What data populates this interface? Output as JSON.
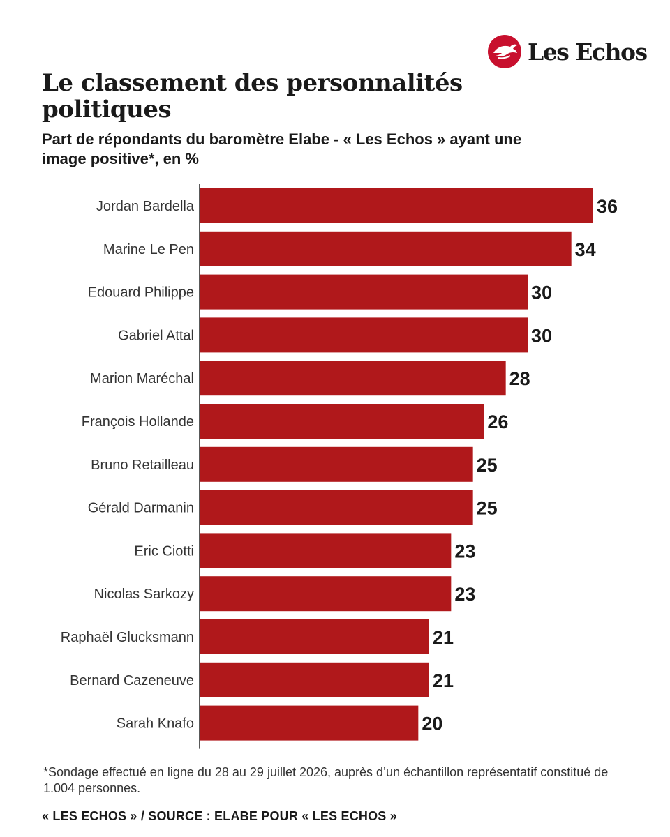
{
  "brand": {
    "name": "Les Echos",
    "accent_color": "#c8102e",
    "icon": "bird-logo-icon"
  },
  "header": {
    "title": "Le classement des personnalités politiques",
    "subtitle": "Part de répondants du baromètre Elabe - « Les Echos » ayant une image positive*, en %"
  },
  "chart_data": {
    "type": "bar",
    "orientation": "horizontal",
    "categories": [
      "Jordan Bardella",
      "Marine Le Pen",
      "Edouard Philippe",
      "Gabriel Attal",
      "Marion Maréchal",
      "François Hollande",
      "Bruno Retailleau",
      "Gérald Darmanin",
      "Eric Ciotti",
      "Nicolas Sarkozy",
      "Raphaël Glucksmann",
      "Bernard Cazeneuve",
      "Sarah Knafo"
    ],
    "values": [
      36,
      34,
      30,
      30,
      28,
      26,
      25,
      25,
      23,
      23,
      21,
      21,
      20
    ],
    "bar_color": "#b0181b",
    "axis_color": "#222222",
    "xlim": [
      0,
      36
    ],
    "data_labels": true,
    "grid": false,
    "legend": "none"
  },
  "footer": {
    "footnote": "*Sondage effectué en ligne du 28 au 29 juillet 2026, auprès d’un échantillon représentatif constitué de 1.004 personnes.",
    "source": "« LES ECHOS » / SOURCE : ELABE POUR « LES ECHOS »"
  }
}
